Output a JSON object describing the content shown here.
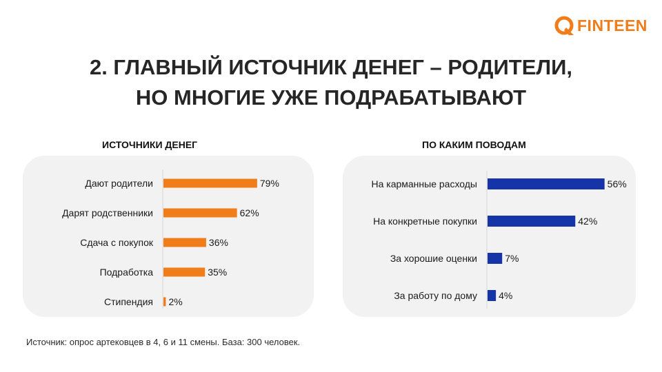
{
  "logo": {
    "text": "FINTEEN",
    "color": "#f07d1a"
  },
  "title": {
    "line1": "2. ГЛАВНЫЙ ИСТОЧНИК ДЕНЕГ – РОДИТЕЛИ,",
    "line2": "НО МНОГИЕ УЖЕ ПОДРАБАТЫВАЮТ"
  },
  "chart_data": [
    {
      "type": "bar",
      "orientation": "horizontal",
      "title": "ИСТОЧНИКИ ДЕНЕГ",
      "categories": [
        "Дают родители",
        "Дарят родственники",
        "Сдача с покупок",
        "Подработка",
        "Стипендия"
      ],
      "values": [
        79,
        62,
        36,
        35,
        2
      ],
      "value_labels": [
        "79%",
        "62%",
        "36%",
        "35%",
        "2%"
      ],
      "unit": "%",
      "color": "#f07d1a",
      "xlim": [
        0,
        100
      ]
    },
    {
      "type": "bar",
      "orientation": "horizontal",
      "title": "ПО КАКИМ ПОВОДАМ",
      "categories": [
        "На карманные расходы",
        "На конкретные покупки",
        "За хорошие оценки",
        "За работу по дому"
      ],
      "values": [
        56,
        42,
        7,
        4
      ],
      "value_labels": [
        "56%",
        "42%",
        "7%",
        "4%"
      ],
      "unit": "%",
      "color": "#1534a8",
      "xlim": [
        0,
        100
      ]
    }
  ],
  "footnote": "Источник: опрос артековцев в 4, 6 и 11 смены. База: 300 человек."
}
